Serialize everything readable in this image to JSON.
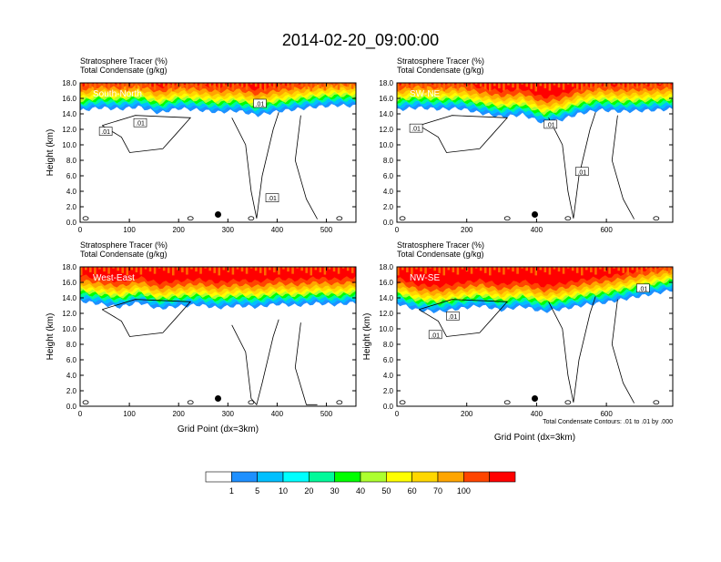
{
  "title": "2014-02-20_09:00:00",
  "chart_data": [
    {
      "type": "heatmap",
      "section_label": "South-North",
      "field_label": "Stratosphere Tracer",
      "field_unit": "(%)",
      "contour_label": "Total Condensate",
      "contour_unit": "(g/kg)",
      "ylabel": "Height (km)",
      "xlabel": "",
      "xlim": [
        0,
        560
      ],
      "ylim": [
        0,
        18
      ],
      "xticks": [
        0,
        100,
        200,
        300,
        400,
        500
      ],
      "yticks": [
        "0.0",
        "2.0",
        "4.0",
        "6.0",
        "8.0",
        "10.0",
        "12.0",
        "14.0",
        "16.0",
        "18.0"
      ],
      "marker_x": 280,
      "marker_y": 1.0,
      "contour_labels": [
        {
          "text": ".01",
          "x": 52,
          "y": 11.7
        },
        {
          "text": ".01",
          "x": 122,
          "y": 12.8
        },
        {
          "text": ".01",
          "x": 365,
          "y": 15.3
        },
        {
          "text": ".01",
          "x": 390,
          "y": 3.1
        }
      ],
      "tracer_top": [
        [
          0,
          14.4
        ],
        [
          40,
          14.8
        ],
        [
          80,
          14.6
        ],
        [
          120,
          14.9
        ],
        [
          160,
          14.1
        ],
        [
          200,
          14.7
        ],
        [
          240,
          14.5
        ],
        [
          280,
          14.2
        ],
        [
          320,
          14.4
        ],
        [
          360,
          13.8
        ],
        [
          400,
          14.3
        ],
        [
          440,
          14.6
        ],
        [
          480,
          14.9
        ],
        [
          520,
          15.1
        ],
        [
          560,
          15.0
        ]
      ]
    },
    {
      "type": "heatmap",
      "section_label": "SW-NE",
      "field_label": "Stratosphere Tracer",
      "field_unit": "(%)",
      "contour_label": "Total Condensate",
      "contour_unit": "(g/kg)",
      "ylabel": "",
      "xlabel": "",
      "xlim": [
        0,
        790
      ],
      "ylim": [
        0,
        18
      ],
      "xticks": [
        0,
        200,
        400,
        600
      ],
      "yticks": [
        "0.0",
        "2.0",
        "4.0",
        "6.0",
        "8.0",
        "10.0",
        "12.0",
        "14.0",
        "16.0",
        "18.0"
      ],
      "marker_x": 395,
      "marker_y": 1.0,
      "contour_labels": [
        {
          "text": ".01",
          "x": 55,
          "y": 12.1
        },
        {
          "text": ".01",
          "x": 440,
          "y": 12.6
        },
        {
          "text": ".01",
          "x": 530,
          "y": 6.5
        }
      ],
      "tracer_top": [
        [
          0,
          14.5
        ],
        [
          60,
          14.8
        ],
        [
          120,
          14.6
        ],
        [
          180,
          14.7
        ],
        [
          240,
          14.1
        ],
        [
          300,
          13.6
        ],
        [
          360,
          13.9
        ],
        [
          420,
          12.8
        ],
        [
          470,
          13.2
        ],
        [
          520,
          14.0
        ],
        [
          580,
          14.5
        ],
        [
          640,
          14.3
        ],
        [
          700,
          14.4
        ],
        [
          790,
          14.6
        ]
      ]
    },
    {
      "type": "heatmap",
      "section_label": "West-East",
      "field_label": "Stratosphere Tracer",
      "field_unit": "(%)",
      "contour_label": "Total Condensate",
      "contour_unit": "(g/kg)",
      "ylabel": "Height (km)",
      "xlabel": "Grid Point (dx=3km)",
      "xlim": [
        0,
        560
      ],
      "ylim": [
        0,
        18
      ],
      "xticks": [
        0,
        100,
        200,
        300,
        400,
        500
      ],
      "yticks": [
        "0.0",
        "2.0",
        "4.0",
        "6.0",
        "8.0",
        "10.0",
        "12.0",
        "14.0",
        "16.0",
        "18.0"
      ],
      "marker_x": 280,
      "marker_y": 1.0,
      "contour_labels": [],
      "tracer_top": [
        [
          0,
          13.6
        ],
        [
          40,
          13.2
        ],
        [
          80,
          12.8
        ],
        [
          120,
          13.4
        ],
        [
          160,
          12.6
        ],
        [
          200,
          12.9
        ],
        [
          240,
          13.1
        ],
        [
          280,
          12.7
        ],
        [
          320,
          13.0
        ],
        [
          360,
          12.8
        ],
        [
          400,
          13.2
        ],
        [
          440,
          13.0
        ],
        [
          480,
          13.3
        ],
        [
          520,
          13.1
        ],
        [
          560,
          13.4
        ]
      ]
    },
    {
      "type": "heatmap",
      "section_label": "NW-SE",
      "field_label": "Stratosphere Tracer",
      "field_unit": "(%)",
      "contour_label": "Total Condensate",
      "contour_unit": "(g/kg)",
      "ylabel": "Height (km)",
      "xlabel": "Grid Point (dx=3km)",
      "xlim": [
        0,
        790
      ],
      "ylim": [
        0,
        18
      ],
      "xticks": [
        0,
        200,
        400,
        600
      ],
      "yticks": [
        "0.0",
        "2.0",
        "4.0",
        "6.0",
        "8.0",
        "10.0",
        "12.0",
        "14.0",
        "16.0",
        "18.0"
      ],
      "marker_x": 395,
      "marker_y": 1.0,
      "contour_labels": [
        {
          "text": ".01",
          "x": 160,
          "y": 11.6
        },
        {
          "text": ".01",
          "x": 110,
          "y": 9.2
        },
        {
          "text": ".01",
          "x": 705,
          "y": 15.2
        }
      ],
      "tracer_top": [
        [
          0,
          13.3
        ],
        [
          60,
          12.4
        ],
        [
          120,
          12.2
        ],
        [
          180,
          12.6
        ],
        [
          240,
          13.0
        ],
        [
          300,
          12.4
        ],
        [
          360,
          12.9
        ],
        [
          420,
          12.2
        ],
        [
          480,
          12.6
        ],
        [
          540,
          13.1
        ],
        [
          600,
          13.4
        ],
        [
          660,
          13.9
        ],
        [
          720,
          14.4
        ],
        [
          790,
          15.0
        ]
      ],
      "footnote": "Total Condensate Contours: .01 to .01 by .000"
    }
  ],
  "colorbar": {
    "labels": [
      "1",
      "5",
      "10",
      "20",
      "30",
      "40",
      "50",
      "60",
      "70",
      "100"
    ],
    "colors": [
      "#ffffff",
      "#1e90ff",
      "#00bfff",
      "#00ffff",
      "#00fa9a",
      "#00ff00",
      "#adff2f",
      "#ffff00",
      "#ffd700",
      "#ffa500",
      "#ff4500",
      "#ff0000"
    ]
  }
}
